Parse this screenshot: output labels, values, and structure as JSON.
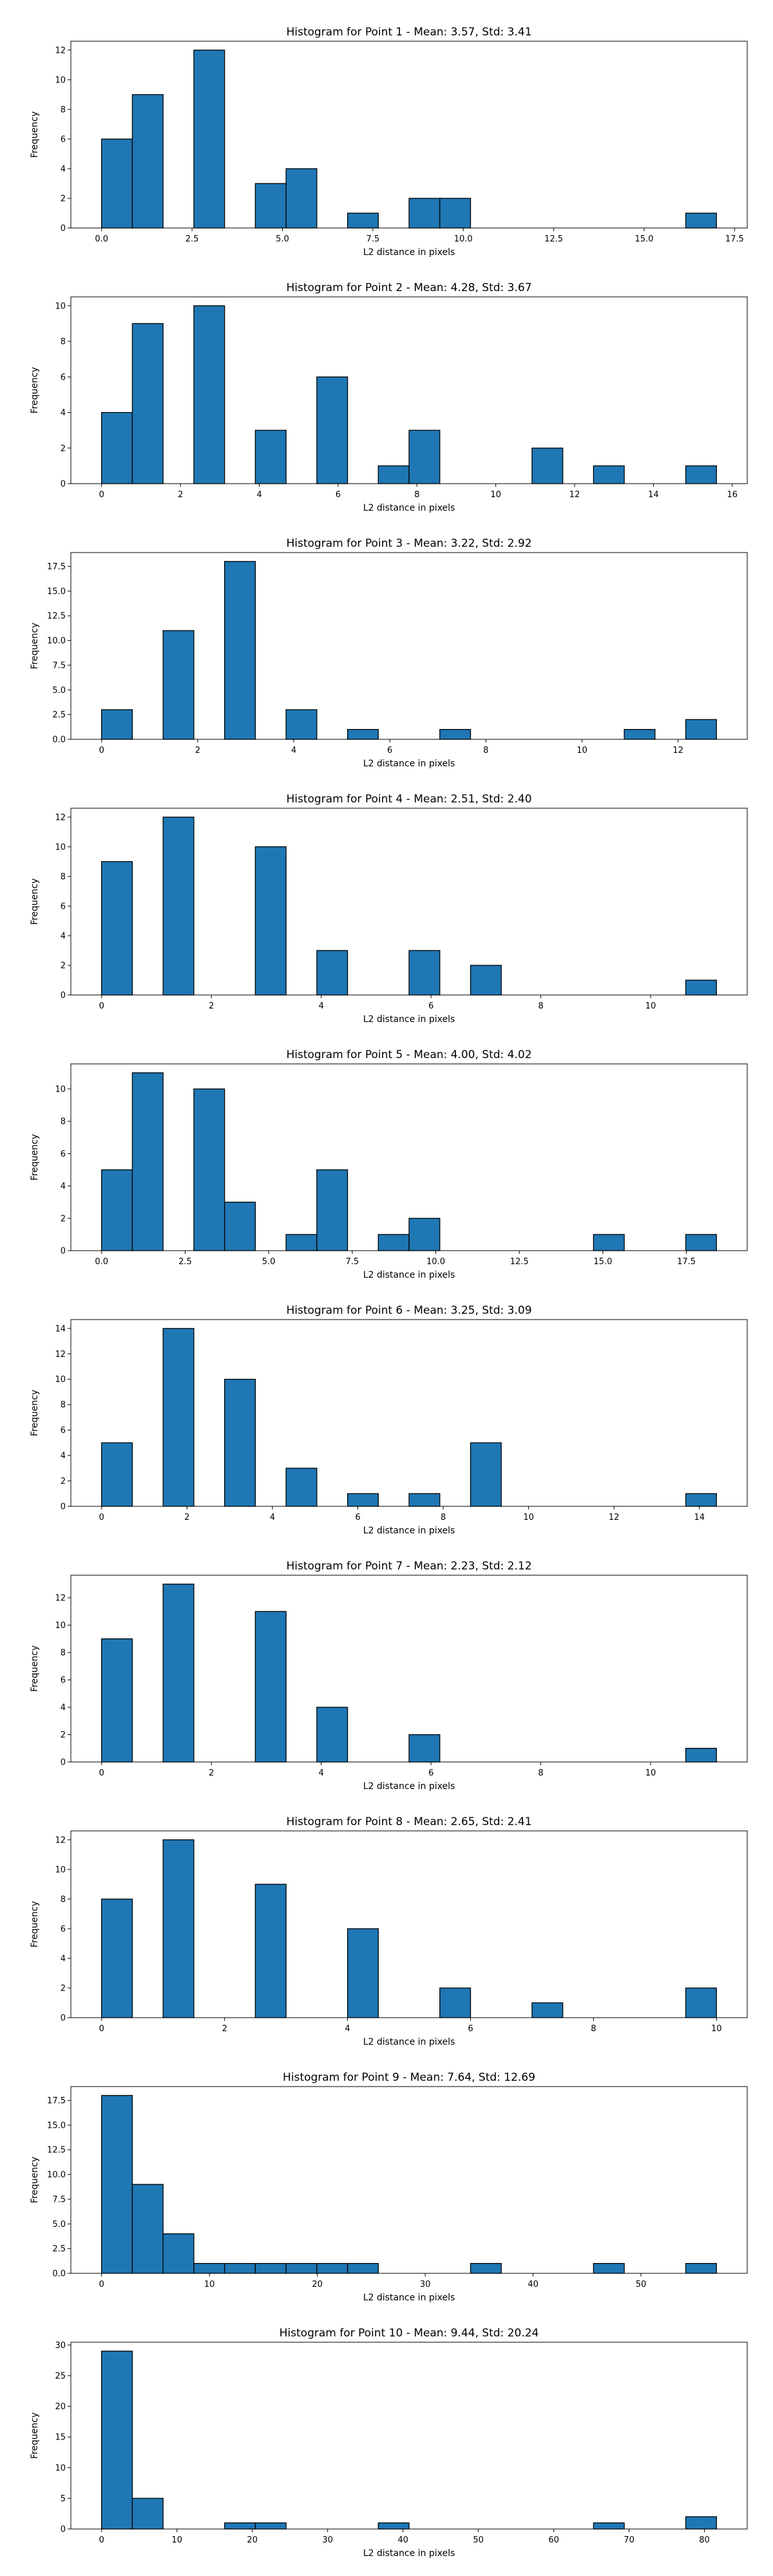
{
  "chart_data": [
    {
      "type": "bar",
      "title": "Histogram for Point 1 - Mean: 3.57, Std: 3.41",
      "xlabel": "L2 distance in pixels",
      "ylabel": "Frequency",
      "xlim": [
        -0.85,
        17.85
      ],
      "ylim": [
        0,
        12.6
      ],
      "xticks": [
        0.0,
        2.5,
        5.0,
        7.5,
        10.0,
        12.5,
        15.0,
        17.5
      ],
      "xtick_labels": [
        "0.0",
        "2.5",
        "5.0",
        "7.5",
        "10.0",
        "12.5",
        "15.0",
        "17.5"
      ],
      "yticks": [
        0,
        2,
        4,
        6,
        8,
        10,
        12
      ],
      "ytick_labels": [
        "0",
        "2",
        "4",
        "6",
        "8",
        "10",
        "12"
      ],
      "bins": [
        {
          "x0": 0.0,
          "x1": 0.85,
          "count": 6
        },
        {
          "x0": 0.85,
          "x1": 1.7,
          "count": 9
        },
        {
          "x0": 2.55,
          "x1": 3.4,
          "count": 12
        },
        {
          "x0": 4.25,
          "x1": 5.1,
          "count": 3
        },
        {
          "x0": 5.1,
          "x1": 5.95,
          "count": 4
        },
        {
          "x0": 6.8,
          "x1": 7.65,
          "count": 1
        },
        {
          "x0": 8.5,
          "x1": 9.35,
          "count": 2
        },
        {
          "x0": 9.35,
          "x1": 10.2,
          "count": 2
        },
        {
          "x0": 16.15,
          "x1": 17.0,
          "count": 1
        }
      ]
    },
    {
      "type": "bar",
      "title": "Histogram for Point 2 - Mean: 4.28, Std: 3.67",
      "xlabel": "L2 distance in pixels",
      "ylabel": "Frequency",
      "xlim": [
        -0.78,
        16.38
      ],
      "ylim": [
        0,
        10.5
      ],
      "xticks": [
        0,
        2,
        4,
        6,
        8,
        10,
        12,
        14,
        16
      ],
      "xtick_labels": [
        "0",
        "2",
        "4",
        "6",
        "8",
        "10",
        "12",
        "14",
        "16"
      ],
      "yticks": [
        0,
        2,
        4,
        6,
        8,
        10
      ],
      "ytick_labels": [
        "0",
        "2",
        "4",
        "6",
        "8",
        "10"
      ],
      "bins": [
        {
          "x0": 0.0,
          "x1": 0.78,
          "count": 4
        },
        {
          "x0": 0.78,
          "x1": 1.56,
          "count": 9
        },
        {
          "x0": 2.34,
          "x1": 3.12,
          "count": 10
        },
        {
          "x0": 3.9,
          "x1": 4.68,
          "count": 3
        },
        {
          "x0": 5.46,
          "x1": 6.24,
          "count": 6
        },
        {
          "x0": 7.02,
          "x1": 7.8,
          "count": 1
        },
        {
          "x0": 7.8,
          "x1": 8.58,
          "count": 3
        },
        {
          "x0": 10.92,
          "x1": 11.7,
          "count": 2
        },
        {
          "x0": 12.48,
          "x1": 13.26,
          "count": 1
        },
        {
          "x0": 14.82,
          "x1": 15.6,
          "count": 1
        }
      ]
    },
    {
      "type": "bar",
      "title": "Histogram for Point 3 - Mean: 3.22, Std: 2.92",
      "xlabel": "L2 distance in pixels",
      "ylabel": "Frequency",
      "xlim": [
        -0.64,
        13.44
      ],
      "ylim": [
        0,
        18.9
      ],
      "xticks": [
        0,
        2,
        4,
        6,
        8,
        10,
        12
      ],
      "xtick_labels": [
        "0",
        "2",
        "4",
        "6",
        "8",
        "10",
        "12"
      ],
      "yticks": [
        0,
        2.5,
        5,
        7.5,
        10,
        12.5,
        15,
        17.5
      ],
      "ytick_labels": [
        "0.0",
        "2.5",
        "5.0",
        "7.5",
        "10.0",
        "12.5",
        "15.0",
        "17.5"
      ],
      "bins": [
        {
          "x0": 0.0,
          "x1": 0.64,
          "count": 3
        },
        {
          "x0": 1.28,
          "x1": 1.92,
          "count": 11
        },
        {
          "x0": 2.56,
          "x1": 3.2,
          "count": 18
        },
        {
          "x0": 3.84,
          "x1": 4.48,
          "count": 3
        },
        {
          "x0": 5.12,
          "x1": 5.76,
          "count": 1
        },
        {
          "x0": 7.04,
          "x1": 7.68,
          "count": 1
        },
        {
          "x0": 10.88,
          "x1": 11.52,
          "count": 1
        },
        {
          "x0": 12.16,
          "x1": 12.8,
          "count": 2
        }
      ]
    },
    {
      "type": "bar",
      "title": "Histogram for Point 4 - Mean: 2.51, Std: 2.40",
      "xlabel": "L2 distance in pixels",
      "ylabel": "Frequency",
      "xlim": [
        -0.56,
        11.76
      ],
      "ylim": [
        0,
        12.6
      ],
      "xticks": [
        0,
        2,
        4,
        6,
        8,
        10
      ],
      "xtick_labels": [
        "0",
        "2",
        "4",
        "6",
        "8",
        "10"
      ],
      "yticks": [
        0,
        2,
        4,
        6,
        8,
        10,
        12
      ],
      "ytick_labels": [
        "0",
        "2",
        "4",
        "6",
        "8",
        "10",
        "12"
      ],
      "bins": [
        {
          "x0": 0.0,
          "x1": 0.56,
          "count": 9
        },
        {
          "x0": 1.12,
          "x1": 1.68,
          "count": 12
        },
        {
          "x0": 2.8,
          "x1": 3.36,
          "count": 10
        },
        {
          "x0": 3.92,
          "x1": 4.48,
          "count": 3
        },
        {
          "x0": 5.6,
          "x1": 6.16,
          "count": 3
        },
        {
          "x0": 6.72,
          "x1": 7.28,
          "count": 2
        },
        {
          "x0": 10.64,
          "x1": 11.2,
          "count": 1
        }
      ]
    },
    {
      "type": "bar",
      "title": "Histogram for Point 5 - Mean: 4.00, Std: 4.02",
      "xlabel": "L2 distance in pixels",
      "ylabel": "Frequency",
      "xlim": [
        -0.92,
        19.32
      ],
      "ylim": [
        0,
        11.55
      ],
      "xticks": [
        0.0,
        2.5,
        5.0,
        7.5,
        10.0,
        12.5,
        15.0,
        17.5
      ],
      "xtick_labels": [
        "0.0",
        "2.5",
        "5.0",
        "7.5",
        "10.0",
        "12.5",
        "15.0",
        "17.5"
      ],
      "yticks": [
        0,
        2,
        4,
        6,
        8,
        10
      ],
      "ytick_labels": [
        "0",
        "2",
        "4",
        "6",
        "8",
        "10"
      ],
      "bins": [
        {
          "x0": 0.0,
          "x1": 0.92,
          "count": 5
        },
        {
          "x0": 0.92,
          "x1": 1.84,
          "count": 11
        },
        {
          "x0": 2.76,
          "x1": 3.68,
          "count": 10
        },
        {
          "x0": 3.68,
          "x1": 4.6,
          "count": 3
        },
        {
          "x0": 5.52,
          "x1": 6.44,
          "count": 1
        },
        {
          "x0": 6.44,
          "x1": 7.36,
          "count": 5
        },
        {
          "x0": 8.28,
          "x1": 9.2,
          "count": 1
        },
        {
          "x0": 9.2,
          "x1": 10.12,
          "count": 2
        },
        {
          "x0": 14.72,
          "x1": 15.64,
          "count": 1
        },
        {
          "x0": 17.48,
          "x1": 18.4,
          "count": 1
        }
      ]
    },
    {
      "type": "bar",
      "title": "Histogram for Point 6 - Mean: 3.25, Std: 3.09",
      "xlabel": "L2 distance in pixels",
      "ylabel": "Frequency",
      "xlim": [
        -0.72,
        15.12
      ],
      "ylim": [
        0,
        14.7
      ],
      "xticks": [
        0,
        2,
        4,
        6,
        8,
        10,
        12,
        14
      ],
      "xtick_labels": [
        "0",
        "2",
        "4",
        "6",
        "8",
        "10",
        "12",
        "14"
      ],
      "yticks": [
        0,
        2,
        4,
        6,
        8,
        10,
        12,
        14
      ],
      "ytick_labels": [
        "0",
        "2",
        "4",
        "6",
        "8",
        "10",
        "12",
        "14"
      ],
      "bins": [
        {
          "x0": 0.0,
          "x1": 0.72,
          "count": 5
        },
        {
          "x0": 1.44,
          "x1": 2.16,
          "count": 14
        },
        {
          "x0": 2.88,
          "x1": 3.6,
          "count": 10
        },
        {
          "x0": 4.32,
          "x1": 5.04,
          "count": 3
        },
        {
          "x0": 5.76,
          "x1": 6.48,
          "count": 1
        },
        {
          "x0": 7.2,
          "x1": 7.92,
          "count": 1
        },
        {
          "x0": 8.64,
          "x1": 9.36,
          "count": 5
        },
        {
          "x0": 13.68,
          "x1": 14.4,
          "count": 1
        }
      ]
    },
    {
      "type": "bar",
      "title": "Histogram for Point 7 - Mean: 2.23, Std: 2.12",
      "xlabel": "L2 distance in pixels",
      "ylabel": "Frequency",
      "xlim": [
        -0.56,
        11.76
      ],
      "ylim": [
        0,
        13.65
      ],
      "xticks": [
        0,
        2,
        4,
        6,
        8,
        10
      ],
      "xtick_labels": [
        "0",
        "2",
        "4",
        "6",
        "8",
        "10"
      ],
      "yticks": [
        0,
        2,
        4,
        6,
        8,
        10,
        12
      ],
      "ytick_labels": [
        "0",
        "2",
        "4",
        "6",
        "8",
        "10",
        "12"
      ],
      "bins": [
        {
          "x0": 0.0,
          "x1": 0.56,
          "count": 9
        },
        {
          "x0": 1.12,
          "x1": 1.68,
          "count": 13
        },
        {
          "x0": 2.8,
          "x1": 3.36,
          "count": 11
        },
        {
          "x0": 3.92,
          "x1": 4.48,
          "count": 4
        },
        {
          "x0": 5.6,
          "x1": 6.16,
          "count": 2
        },
        {
          "x0": 10.64,
          "x1": 11.2,
          "count": 1
        }
      ]
    },
    {
      "type": "bar",
      "title": "Histogram for Point 8 - Mean: 2.65, Std: 2.41",
      "xlabel": "L2 distance in pixels",
      "ylabel": "Frequency",
      "xlim": [
        -0.5,
        10.5
      ],
      "ylim": [
        0,
        12.6
      ],
      "xticks": [
        0,
        2,
        4,
        6,
        8,
        10
      ],
      "xtick_labels": [
        "0",
        "2",
        "4",
        "6",
        "8",
        "10"
      ],
      "yticks": [
        0,
        2,
        4,
        6,
        8,
        10,
        12
      ],
      "ytick_labels": [
        "0",
        "2",
        "4",
        "6",
        "8",
        "10",
        "12"
      ],
      "bins": [
        {
          "x0": 0.0,
          "x1": 0.5,
          "count": 8
        },
        {
          "x0": 1.0,
          "x1": 1.5,
          "count": 12
        },
        {
          "x0": 2.5,
          "x1": 3.0,
          "count": 9
        },
        {
          "x0": 4.0,
          "x1": 4.5,
          "count": 6
        },
        {
          "x0": 5.5,
          "x1": 6.0,
          "count": 2
        },
        {
          "x0": 7.0,
          "x1": 7.5,
          "count": 1
        },
        {
          "x0": 9.5,
          "x1": 10.0,
          "count": 2
        }
      ]
    },
    {
      "type": "bar",
      "title": "Histogram for Point 9 - Mean: 7.64, Std: 12.69",
      "xlabel": "L2 distance in pixels",
      "ylabel": "Frequency",
      "xlim": [
        -2.85,
        59.85
      ],
      "ylim": [
        0,
        18.9
      ],
      "xticks": [
        0,
        10,
        20,
        30,
        40,
        50
      ],
      "xtick_labels": [
        "0",
        "10",
        "20",
        "30",
        "40",
        "50"
      ],
      "yticks": [
        0,
        2.5,
        5,
        7.5,
        10,
        12.5,
        15,
        17.5
      ],
      "ytick_labels": [
        "0.0",
        "2.5",
        "5.0",
        "7.5",
        "10.0",
        "12.5",
        "15.0",
        "17.5"
      ],
      "bins": [
        {
          "x0": 0.0,
          "x1": 2.85,
          "count": 18
        },
        {
          "x0": 2.85,
          "x1": 5.7,
          "count": 9
        },
        {
          "x0": 5.7,
          "x1": 8.55,
          "count": 4
        },
        {
          "x0": 8.55,
          "x1": 11.4,
          "count": 1
        },
        {
          "x0": 11.4,
          "x1": 14.25,
          "count": 1
        },
        {
          "x0": 14.25,
          "x1": 17.1,
          "count": 1
        },
        {
          "x0": 17.1,
          "x1": 19.95,
          "count": 1
        },
        {
          "x0": 19.95,
          "x1": 22.8,
          "count": 1
        },
        {
          "x0": 22.8,
          "x1": 25.65,
          "count": 1
        },
        {
          "x0": 34.2,
          "x1": 37.05,
          "count": 1
        },
        {
          "x0": 45.6,
          "x1": 48.45,
          "count": 1
        },
        {
          "x0": 54.15,
          "x1": 57.0,
          "count": 1
        }
      ]
    },
    {
      "type": "bar",
      "title": "Histogram for Point 10 - Mean: 9.44, Std: 20.24",
      "xlabel": "L2 distance in pixels",
      "ylabel": "Frequency",
      "xlim": [
        -4.08,
        85.68
      ],
      "ylim": [
        0,
        30.45
      ],
      "xticks": [
        0,
        10,
        20,
        30,
        40,
        50,
        60,
        70,
        80
      ],
      "xtick_labels": [
        "0",
        "10",
        "20",
        "30",
        "40",
        "50",
        "60",
        "70",
        "80"
      ],
      "yticks": [
        0,
        5,
        10,
        15,
        20,
        25,
        30
      ],
      "ytick_labels": [
        "0",
        "5",
        "10",
        "15",
        "20",
        "25",
        "30"
      ],
      "bins": [
        {
          "x0": 0.0,
          "x1": 4.08,
          "count": 29
        },
        {
          "x0": 4.08,
          "x1": 8.16,
          "count": 5
        },
        {
          "x0": 16.32,
          "x1": 20.4,
          "count": 1
        },
        {
          "x0": 20.4,
          "x1": 24.48,
          "count": 1
        },
        {
          "x0": 36.72,
          "x1": 40.8,
          "count": 1
        },
        {
          "x0": 65.28,
          "x1": 69.36,
          "count": 1
        },
        {
          "x0": 77.52,
          "x1": 81.6,
          "count": 2
        }
      ]
    }
  ]
}
